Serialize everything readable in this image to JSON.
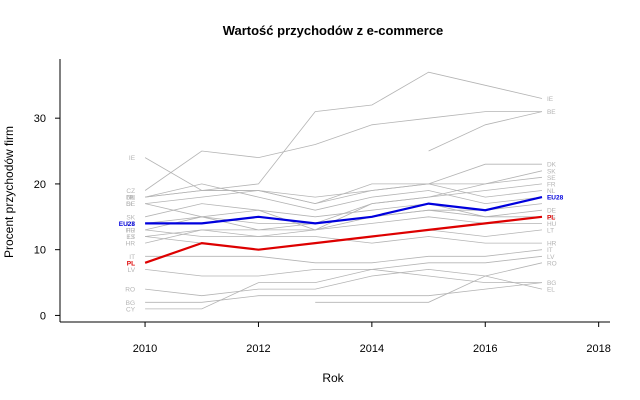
{
  "chart_data": {
    "type": "line",
    "title": "Wartość przychodów z e-commerce",
    "xlabel": "Rok",
    "ylabel": "Procent przychodów firm",
    "xlim": [
      2008.5,
      2018.2
    ],
    "ylim": [
      -1,
      39
    ],
    "x_ticks": [
      2010,
      2012,
      2014,
      2016,
      2018
    ],
    "y_ticks": [
      0,
      10,
      20,
      30
    ],
    "colors": {
      "other": "#b4b4b4",
      "eu": "#0000dd",
      "pl": "#dd0000",
      "axis": "#000000"
    },
    "series": [
      {
        "name": "IE",
        "highlight": "other",
        "x": [
          2010,
          2011,
          2012,
          2013,
          2014,
          2015,
          2016,
          2017
        ],
        "values": [
          24,
          19,
          20,
          31,
          32,
          37,
          35,
          33
        ],
        "label_start": true,
        "label_end": true
      },
      {
        "name": "BE",
        "highlight": "other",
        "x": [
          2015,
          2016,
          2017
        ],
        "values": [
          25,
          29,
          31
        ],
        "label_start": false,
        "label_end": true
      },
      {
        "name": "DK",
        "highlight": "other",
        "x": [
          2010,
          2011,
          2012,
          2013,
          2014,
          2015,
          2016,
          2017
        ],
        "values": [
          18,
          19,
          19,
          17,
          19,
          20,
          23,
          23
        ],
        "label_start": true,
        "label_end": true
      },
      {
        "name": "SK",
        "highlight": "other",
        "x": [
          2010,
          2011,
          2012,
          2013,
          2014,
          2015,
          2016,
          2017
        ],
        "values": [
          15,
          17,
          16,
          13,
          17,
          18,
          20,
          22
        ],
        "label_start": true,
        "label_end": true
      },
      {
        "name": "SE",
        "highlight": "other",
        "x": [
          2010,
          2011,
          2012,
          2013,
          2014,
          2015,
          2016,
          2017
        ],
        "values": [
          17,
          18,
          19,
          18,
          19,
          20,
          20,
          21
        ],
        "label_start": true,
        "label_end": true
      },
      {
        "name": "FR",
        "highlight": "other",
        "x": [
          2010,
          2011,
          2012,
          2013,
          2014,
          2015,
          2016,
          2017
        ],
        "values": [
          13,
          15,
          14,
          14,
          17,
          18,
          19,
          20
        ],
        "label_start": true,
        "label_end": true
      },
      {
        "name": "NL",
        "highlight": "other",
        "x": [
          2010,
          2011,
          2012,
          2013,
          2014,
          2015,
          2016,
          2017
        ],
        "values": [
          18,
          19,
          19,
          17,
          20,
          20,
          18,
          19
        ],
        "label_start": true,
        "label_end": true
      },
      {
        "name": "FI",
        "highlight": "other",
        "x": [
          2010,
          2011,
          2012,
          2013,
          2014,
          2015,
          2016,
          2017
        ],
        "values": [
          18,
          20,
          18,
          16,
          18,
          19,
          17,
          18
        ],
        "label_start": true,
        "label_end": true
      },
      {
        "name": "DE",
        "highlight": "other",
        "x": [
          2010,
          2011,
          2012,
          2013,
          2014,
          2015,
          2016,
          2017
        ],
        "values": [
          17,
          15,
          16,
          15,
          16,
          17,
          15,
          16
        ],
        "label_start": true,
        "label_end": true
      },
      {
        "name": "ES",
        "highlight": "other",
        "x": [
          2010,
          2011,
          2012,
          2013,
          2014,
          2015,
          2016,
          2017
        ],
        "values": [
          12,
          13,
          13,
          14,
          15,
          16,
          15,
          15
        ],
        "label_start": true,
        "label_end": true
      },
      {
        "name": "HU",
        "highlight": "other",
        "x": [
          2010,
          2011,
          2012,
          2013,
          2014,
          2015,
          2016,
          2017
        ],
        "values": [
          13,
          12,
          12,
          13,
          14,
          15,
          14,
          14
        ],
        "label_start": true,
        "label_end": true
      },
      {
        "name": "LT",
        "highlight": "other",
        "x": [
          2010,
          2011,
          2012,
          2013,
          2014,
          2015,
          2016,
          2017
        ],
        "values": [
          12,
          11,
          10,
          11,
          12,
          13,
          12,
          13
        ],
        "label_start": true,
        "label_end": true
      },
      {
        "name": "HR",
        "highlight": "other",
        "x": [
          2010,
          2011,
          2012,
          2013,
          2014,
          2015,
          2016,
          2017
        ],
        "values": [
          11,
          13,
          12,
          12,
          11,
          12,
          11,
          11
        ],
        "label_start": true,
        "label_end": true
      },
      {
        "name": "IT",
        "highlight": "other",
        "x": [
          2010,
          2011,
          2012,
          2013,
          2014,
          2015,
          2016,
          2017
        ],
        "values": [
          9,
          9,
          9,
          8,
          8,
          9,
          9,
          10
        ],
        "label_start": true,
        "label_end": true
      },
      {
        "name": "LV",
        "highlight": "other",
        "x": [
          2010,
          2011,
          2012,
          2013,
          2014,
          2015,
          2016,
          2017
        ],
        "values": [
          7,
          6,
          6,
          7,
          7,
          8,
          8,
          9
        ],
        "label_start": true,
        "label_end": true
      },
      {
        "name": "RO",
        "highlight": "other",
        "x": [
          2010,
          2011,
          2012,
          2013,
          2014,
          2015,
          2016,
          2017
        ],
        "values": [
          4,
          3,
          4,
          4,
          6,
          7,
          6,
          8
        ],
        "label_start": true,
        "label_end": true
      },
      {
        "name": "BG",
        "highlight": "other",
        "x": [
          2010,
          2011,
          2012,
          2013,
          2014,
          2015,
          2016,
          2017
        ],
        "values": [
          2,
          2,
          3,
          3,
          3,
          3,
          4,
          5
        ],
        "label_start": true,
        "label_end": true
      },
      {
        "name": "EL",
        "highlight": "other",
        "x": [
          2013,
          2014,
          2015,
          2016,
          2017
        ],
        "values": [
          2,
          2,
          2,
          6,
          4
        ],
        "label_start": false,
        "label_end": true
      },
      {
        "name": "CY",
        "highlight": "other",
        "x": [
          2010,
          2011,
          2012,
          2013,
          2014,
          2015,
          2016,
          2017
        ],
        "values": [
          1,
          1,
          5,
          5,
          7,
          6,
          5,
          5
        ],
        "label_start": true,
        "label_end": false
      },
      {
        "name": "PT",
        "highlight": "other",
        "x": [
          2010,
          2011,
          2012,
          2013,
          2014,
          2015,
          2016,
          2017
        ],
        "values": [
          14,
          15,
          13,
          13,
          15,
          16,
          16,
          17
        ],
        "label_start": true,
        "label_end": false
      },
      {
        "name": "CZ",
        "highlight": "other",
        "x": [
          2010,
          2011,
          2012,
          2013,
          2014,
          2015,
          2016,
          2017
        ],
        "values": [
          19,
          25,
          24,
          26,
          29,
          30,
          31,
          31
        ],
        "label_start": true,
        "label_end": false
      },
      {
        "name": "EU28",
        "highlight": "eu",
        "x": [
          2010,
          2011,
          2012,
          2013,
          2014,
          2015,
          2016,
          2017
        ],
        "values": [
          14,
          14,
          15,
          14,
          15,
          17,
          16,
          18
        ],
        "label_start": true,
        "label_end": true
      },
      {
        "name": "PL",
        "highlight": "pl",
        "x": [
          2010,
          2011,
          2012,
          2013,
          2014,
          2015,
          2016,
          2017
        ],
        "values": [
          8,
          11,
          10,
          11,
          12,
          13,
          14,
          15
        ],
        "label_start": true,
        "label_end": true
      }
    ]
  }
}
